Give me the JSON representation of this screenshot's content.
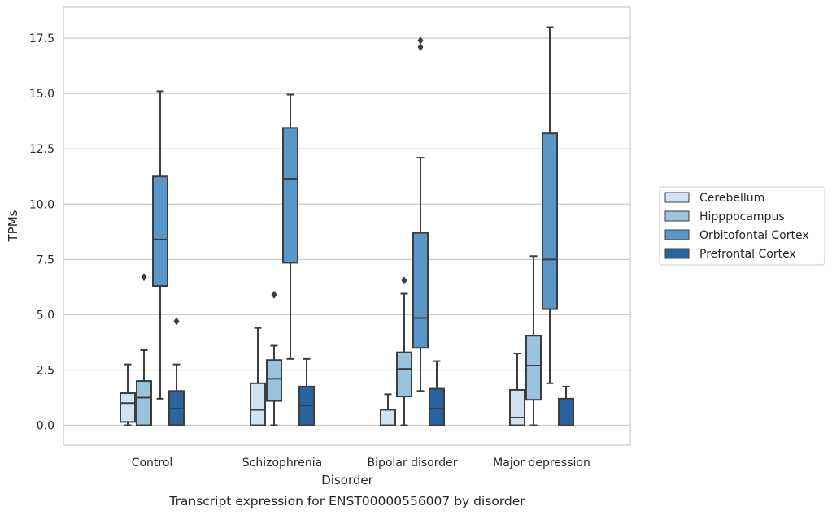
{
  "caption": "Transcript expression for ENST00000556007 by disorder",
  "chart_data": {
    "type": "box",
    "xlabel": "Disorder",
    "ylabel": "TPMs",
    "categories": [
      "Control",
      "Schizophrenia",
      "Bipolar disorder",
      "Major depression"
    ],
    "ylim": [
      -0.9,
      18.9
    ],
    "yticks": [
      "0.0",
      "2.5",
      "5.0",
      "7.5",
      "10.0",
      "12.5",
      "15.0",
      "17.5"
    ],
    "grid": "horizontal",
    "legend_position": "right",
    "series": [
      {
        "name": "Cerebellum",
        "color": "#d3e2f1",
        "boxes": [
          {
            "whisker_low": 0.0,
            "q1": 0.15,
            "median": 1.0,
            "q3": 1.45,
            "whisker_high": 2.75,
            "outliers": []
          },
          {
            "whisker_low": 0.0,
            "q1": 0.0,
            "median": 0.7,
            "q3": 1.9,
            "whisker_high": 4.4,
            "outliers": []
          },
          {
            "whisker_low": 0.0,
            "q1": 0.0,
            "median": 0.0,
            "q3": 0.7,
            "whisker_high": 1.4,
            "outliers": []
          },
          {
            "whisker_low": 0.0,
            "q1": 0.0,
            "median": 0.35,
            "q3": 1.6,
            "whisker_high": 3.25,
            "outliers": []
          }
        ]
      },
      {
        "name": "Hipppocampus",
        "color": "#9ac4de",
        "boxes": [
          {
            "whisker_low": 0.0,
            "q1": 0.0,
            "median": 1.25,
            "q3": 2.0,
            "whisker_high": 3.4,
            "outliers": [
              6.7
            ]
          },
          {
            "whisker_low": 0.0,
            "q1": 1.1,
            "median": 2.1,
            "q3": 2.95,
            "whisker_high": 3.6,
            "outliers": [
              5.9
            ]
          },
          {
            "whisker_low": 0.0,
            "q1": 1.3,
            "median": 2.55,
            "q3": 3.3,
            "whisker_high": 5.95,
            "outliers": [
              6.55
            ]
          },
          {
            "whisker_low": 0.0,
            "q1": 1.15,
            "median": 2.7,
            "q3": 4.05,
            "whisker_high": 7.65,
            "outliers": []
          }
        ]
      },
      {
        "name": "Orbitofontal Cortex",
        "color": "#5b97c6",
        "boxes": [
          {
            "whisker_low": 1.2,
            "q1": 6.3,
            "median": 8.4,
            "q3": 11.25,
            "whisker_high": 15.1,
            "outliers": []
          },
          {
            "whisker_low": 3.0,
            "q1": 7.35,
            "median": 11.15,
            "q3": 13.45,
            "whisker_high": 14.95,
            "outliers": []
          },
          {
            "whisker_low": 1.55,
            "q1": 3.5,
            "median": 4.85,
            "q3": 8.7,
            "whisker_high": 12.1,
            "outliers": [
              17.1,
              17.4
            ]
          },
          {
            "whisker_low": 1.9,
            "q1": 5.25,
            "median": 7.5,
            "q3": 13.2,
            "whisker_high": 18.0,
            "outliers": []
          }
        ]
      },
      {
        "name": "Prefrontal Cortex",
        "color": "#2a64a0",
        "boxes": [
          {
            "whisker_low": 0.0,
            "q1": 0.0,
            "median": 0.75,
            "q3": 1.55,
            "whisker_high": 2.75,
            "outliers": [
              4.7
            ]
          },
          {
            "whisker_low": 0.0,
            "q1": 0.0,
            "median": 0.9,
            "q3": 1.75,
            "whisker_high": 3.0,
            "outliers": []
          },
          {
            "whisker_low": 0.0,
            "q1": 0.0,
            "median": 0.75,
            "q3": 1.65,
            "whisker_high": 2.9,
            "outliers": []
          },
          {
            "whisker_low": 0.0,
            "q1": 0.0,
            "median": 0.0,
            "q3": 1.2,
            "whisker_high": 1.75,
            "outliers": []
          }
        ]
      }
    ]
  }
}
